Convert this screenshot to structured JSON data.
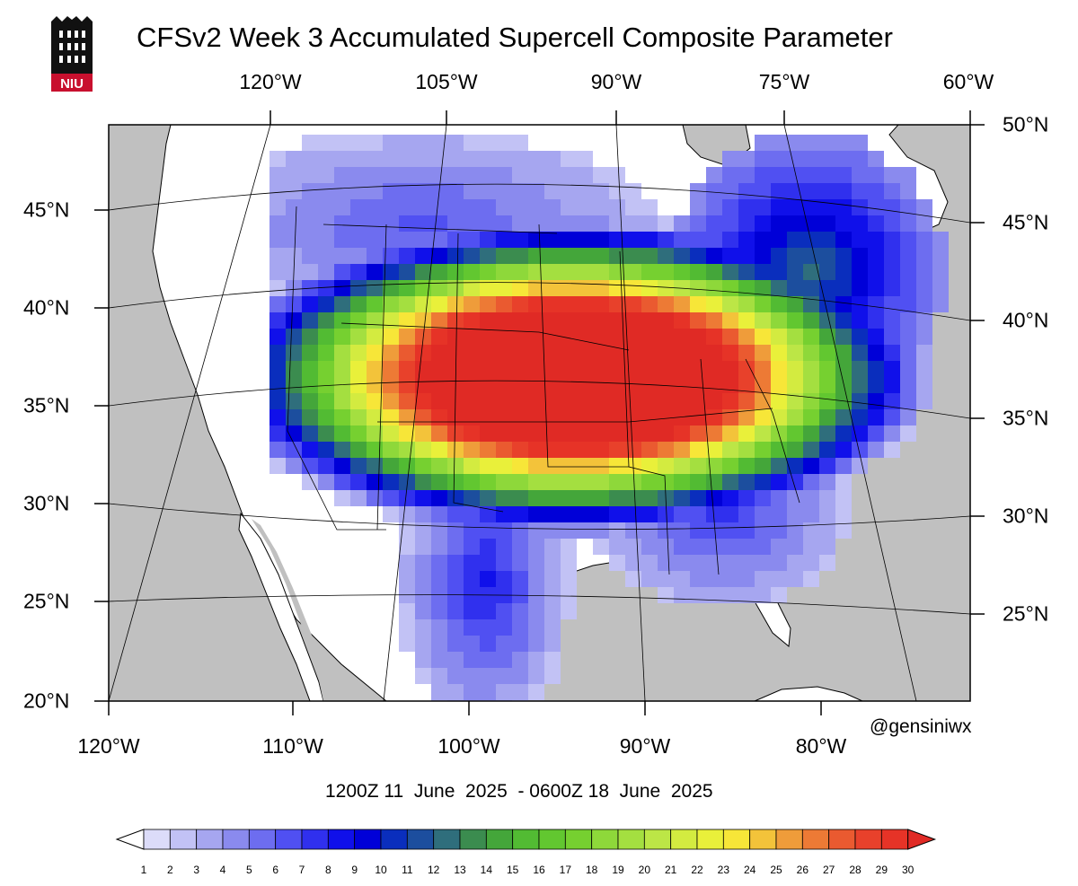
{
  "title": "CFSv2 Week 3 Accumulated Supercell Composite Parameter",
  "logo": {
    "text": "NIU",
    "icon": "niu-tower-logo-icon",
    "color": "#c8102e"
  },
  "top_lon_labels": [
    "120°W",
    "105°W",
    "90°W",
    "75°W",
    "60°W"
  ],
  "left_lat_labels": [
    "45°N",
    "40°N",
    "35°N",
    "30°N",
    "25°N",
    "20°N"
  ],
  "right_lat_labels": [
    "50°N",
    "45°N",
    "40°N",
    "35°N",
    "30°N",
    "25°N"
  ],
  "bottom_lon_labels": [
    "120°W",
    "110°W",
    "100°W",
    "90°W",
    "80°W"
  ],
  "credit": "@gensiniwx",
  "valid_period": "1200Z 11  June  2025  - 0600Z 18  June  2025",
  "colors": {
    "land": "#ffffff",
    "ocean": "#c0c0c0",
    "border": "#000000"
  },
  "colorbar": {
    "labels": [
      "1",
      "2",
      "3",
      "4",
      "5",
      "6",
      "7",
      "8",
      "9",
      "10",
      "11",
      "12",
      "13",
      "14",
      "15",
      "16",
      "17",
      "18",
      "19",
      "20",
      "21",
      "22",
      "23",
      "24",
      "25",
      "26",
      "27",
      "28",
      "29",
      "30"
    ],
    "colors": [
      "#ffffff",
      "#dcdcf9",
      "#c2c2f5",
      "#a6a6f0",
      "#8a8aee",
      "#6d6df0",
      "#5050f2",
      "#3030ee",
      "#1010ea",
      "#0000d8",
      "#0a2ebd",
      "#1c4e9e",
      "#2f6e7c",
      "#3b8c4f",
      "#44a63a",
      "#52bb33",
      "#62c730",
      "#76d030",
      "#8ed83a",
      "#a4df40",
      "#bce646",
      "#d3eb40",
      "#e9f03a",
      "#f7e638",
      "#f3c33a",
      "#ef9c3a",
      "#ed7a35",
      "#ea5a30",
      "#e8412b",
      "#e63327",
      "#e02a25"
    ]
  },
  "map_data": {
    "field": "Accumulated Supercell Composite Parameter",
    "description_period": "Week 3",
    "max_region": "Central Plains to Ohio Valley",
    "max_value_class": 30
  }
}
